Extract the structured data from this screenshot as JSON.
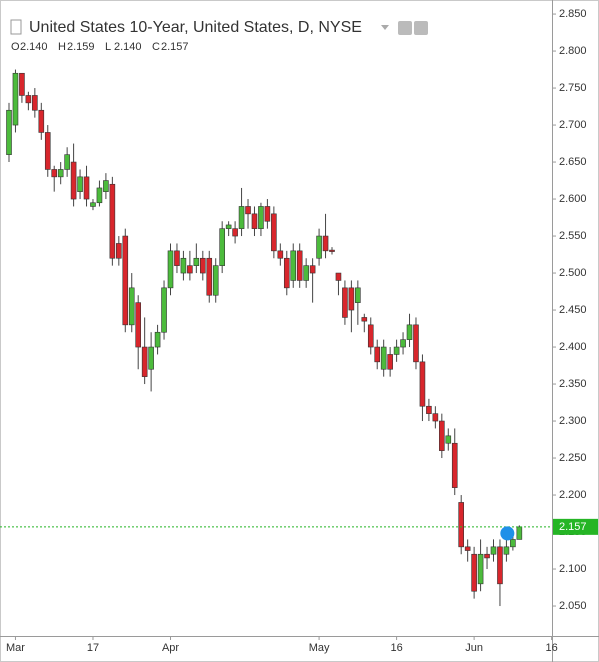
{
  "chart_data": {
    "type": "candlestick",
    "title": "United States 10-Year, United States, D, NYSE",
    "ohlc_header": [
      {
        "key": "O",
        "text": "2.140"
      },
      {
        "key": "H",
        "text": "2.159"
      },
      {
        "key": "L",
        "text": "2.140"
      },
      {
        "key": "C",
        "text": "2.157"
      }
    ],
    "categories": [
      null,
      "Mar",
      null,
      null,
      null,
      null,
      null,
      null,
      null,
      null,
      null,
      null,
      null,
      "17",
      null,
      null,
      null,
      null,
      null,
      null,
      null,
      null,
      null,
      null,
      null,
      "Apr",
      null,
      null,
      null,
      null,
      null,
      null,
      null,
      null,
      null,
      null,
      null,
      null,
      null,
      null,
      null,
      null,
      null,
      null,
      null,
      null,
      null,
      null,
      "May",
      null,
      null,
      null,
      null,
      null,
      null,
      null,
      null,
      null,
      null,
      null,
      "16",
      null,
      null,
      null,
      null,
      null,
      null,
      null,
      null,
      null,
      null,
      null,
      "Jun",
      null,
      null,
      null,
      null,
      null,
      null,
      null
    ],
    "future_categories": [
      null,
      null,
      null,
      null,
      "16"
    ],
    "open": [
      2.66,
      2.7,
      2.77,
      2.74,
      2.74,
      2.72,
      2.69,
      2.64,
      2.63,
      2.64,
      2.65,
      2.61,
      2.63,
      2.59,
      2.595,
      2.61,
      2.62,
      2.54,
      2.55,
      2.43,
      2.46,
      2.4,
      2.37,
      2.4,
      2.42,
      2.48,
      2.53,
      2.5,
      2.51,
      2.51,
      2.52,
      2.52,
      2.47,
      2.51,
      2.56,
      2.56,
      2.56,
      2.59,
      2.58,
      2.56,
      2.59,
      2.58,
      2.53,
      2.52,
      2.49,
      2.53,
      2.49,
      2.51,
      2.52,
      2.55,
      2.531,
      2.5,
      2.48,
      2.48,
      2.46,
      2.44,
      2.43,
      2.4,
      2.37,
      2.39,
      2.39,
      2.4,
      2.41,
      2.43,
      2.38,
      2.32,
      2.31,
      2.3,
      2.27,
      2.27,
      2.19,
      2.13,
      2.12,
      2.08,
      2.12,
      2.12,
      2.13,
      2.12,
      2.13,
      2.14
    ],
    "high": [
      2.73,
      2.775,
      2.77,
      2.745,
      2.75,
      2.73,
      2.7,
      2.645,
      2.65,
      2.67,
      2.675,
      2.64,
      2.645,
      2.6,
      2.625,
      2.635,
      2.63,
      2.55,
      2.56,
      2.5,
      2.47,
      2.44,
      2.42,
      2.43,
      2.49,
      2.54,
      2.54,
      2.53,
      2.53,
      2.54,
      2.53,
      2.53,
      2.52,
      2.57,
      2.57,
      2.57,
      2.615,
      2.6,
      2.59,
      2.595,
      2.6,
      2.59,
      2.54,
      2.53,
      2.54,
      2.54,
      2.52,
      2.52,
      2.56,
      2.58,
      2.535,
      2.5,
      2.49,
      2.49,
      2.49,
      2.445,
      2.44,
      2.41,
      2.41,
      2.4,
      2.41,
      2.42,
      2.445,
      2.44,
      2.39,
      2.33,
      2.32,
      2.31,
      2.29,
      2.29,
      2.2,
      2.14,
      2.13,
      2.14,
      2.13,
      2.14,
      2.14,
      2.14,
      2.145,
      2.159
    ],
    "low": [
      2.65,
      2.69,
      2.73,
      2.72,
      2.71,
      2.68,
      2.63,
      2.61,
      2.62,
      2.63,
      2.59,
      2.6,
      2.59,
      2.585,
      2.59,
      2.6,
      2.51,
      2.51,
      2.42,
      2.42,
      2.37,
      2.35,
      2.34,
      2.39,
      2.41,
      2.47,
      2.5,
      2.49,
      2.49,
      2.5,
      2.49,
      2.46,
      2.46,
      2.5,
      2.55,
      2.54,
      2.55,
      2.56,
      2.55,
      2.55,
      2.56,
      2.52,
      2.51,
      2.47,
      2.48,
      2.48,
      2.48,
      2.46,
      2.51,
      2.52,
      2.525,
      2.47,
      2.43,
      2.42,
      2.43,
      2.42,
      2.39,
      2.37,
      2.36,
      2.36,
      2.38,
      2.39,
      2.4,
      2.37,
      2.3,
      2.3,
      2.29,
      2.25,
      2.26,
      2.2,
      2.12,
      2.11,
      2.06,
      2.07,
      2.1,
      2.11,
      2.05,
      2.11,
      2.125,
      2.14
    ],
    "close": [
      2.72,
      2.77,
      2.74,
      2.73,
      2.72,
      2.69,
      2.64,
      2.63,
      2.64,
      2.66,
      2.6,
      2.63,
      2.6,
      2.595,
      2.615,
      2.625,
      2.52,
      2.52,
      2.43,
      2.48,
      2.4,
      2.36,
      2.4,
      2.42,
      2.48,
      2.53,
      2.51,
      2.52,
      2.5,
      2.52,
      2.5,
      2.47,
      2.51,
      2.56,
      2.565,
      2.55,
      2.59,
      2.58,
      2.56,
      2.59,
      2.57,
      2.53,
      2.52,
      2.48,
      2.53,
      2.49,
      2.51,
      2.5,
      2.55,
      2.53,
      2.529,
      2.49,
      2.44,
      2.45,
      2.48,
      2.435,
      2.4,
      2.38,
      2.4,
      2.37,
      2.4,
      2.41,
      2.43,
      2.38,
      2.32,
      2.31,
      2.3,
      2.26,
      2.28,
      2.21,
      2.13,
      2.125,
      2.07,
      2.12,
      2.115,
      2.13,
      2.08,
      2.13,
      2.14,
      2.157
    ],
    "up_color": "#4cbb3c",
    "down_color": "#d8262c",
    "ylim": [
      2.0095,
      2.869
    ],
    "yticks": [
      {
        "value": 2.05,
        "label": "2.050"
      },
      {
        "value": 2.1,
        "label": "2.100"
      },
      {
        "value": 2.15,
        "label": "2.150"
      },
      {
        "value": 2.2,
        "label": "2.200"
      },
      {
        "value": 2.25,
        "label": "2.250"
      },
      {
        "value": 2.3,
        "label": "2.300"
      },
      {
        "value": 2.35,
        "label": "2.350"
      },
      {
        "value": 2.4,
        "label": "2.400"
      },
      {
        "value": 2.45,
        "label": "2.450"
      },
      {
        "value": 2.5,
        "label": "2.500"
      },
      {
        "value": 2.55,
        "label": "2.550"
      },
      {
        "value": 2.6,
        "label": "2.600"
      },
      {
        "value": 2.65,
        "label": "2.650"
      },
      {
        "value": 2.7,
        "label": "2.700"
      },
      {
        "value": 2.75,
        "label": "2.750"
      },
      {
        "value": 2.8,
        "label": "2.800"
      },
      {
        "value": 2.85,
        "label": "2.850"
      }
    ],
    "last_value": {
      "value": 2.157,
      "label": "2.157"
    },
    "last_color": "#25b525",
    "grid": false
  }
}
